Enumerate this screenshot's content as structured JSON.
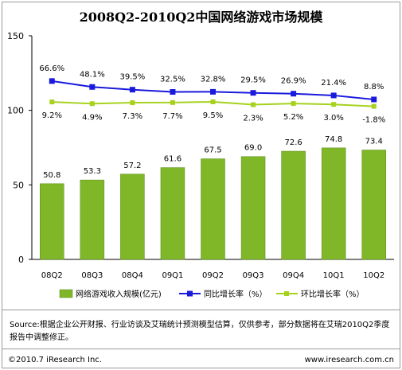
{
  "chart_data": {
    "type": "bar",
    "title": "2008Q2-2010Q2中国网络游戏市场规模",
    "categories": [
      "08Q2",
      "08Q3",
      "08Q4",
      "09Q1",
      "09Q2",
      "09Q3",
      "09Q4",
      "10Q1",
      "10Q2"
    ],
    "ylim": [
      0,
      150
    ],
    "yticks": [
      "0",
      "50",
      "100",
      "150"
    ],
    "series": [
      {
        "name": "网络游戏收入规模(亿元)",
        "kind": "bar",
        "color": "#7fb728",
        "values": [
          50.8,
          53.3,
          57.2,
          61.6,
          67.5,
          69.0,
          72.6,
          74.8,
          73.4
        ],
        "labels": [
          "50.8",
          "53.3",
          "57.2",
          "61.6",
          "67.5",
          "69.0",
          "72.6",
          "74.8",
          "73.4"
        ]
      },
      {
        "name": "同比增长率（%）",
        "kind": "line",
        "color": "#1a1adc",
        "values": [
          66.6,
          48.1,
          39.5,
          32.5,
          32.8,
          29.5,
          26.9,
          21.4,
          8.8
        ],
        "labels": [
          "66.6%",
          "48.1%",
          "39.5%",
          "32.5%",
          "32.8%",
          "29.5%",
          "26.9%",
          "21.4%",
          "8.8%"
        ]
      },
      {
        "name": "环比增长率（%）",
        "kind": "line",
        "color": "#a6d21e",
        "values": [
          9.2,
          4.9,
          7.3,
          7.7,
          9.5,
          2.3,
          5.2,
          3.0,
          -1.8
        ],
        "labels": [
          "9.2%",
          "4.9%",
          "7.3%",
          "7.7%",
          "9.5%",
          "2.3%",
          "5.2%",
          "3.0%",
          "-1.8%"
        ]
      }
    ],
    "legend_position": "bottom",
    "grid": false
  },
  "source": "Source:根据企业公开财报、行业访谈及艾瑞统计预测模型估算，仅供参考，部分数据将在艾瑞2010Q2季度报告中调整修正。",
  "copyright": "©2010.7 iResearch Inc.",
  "website": "www.iresearch.com.cn"
}
